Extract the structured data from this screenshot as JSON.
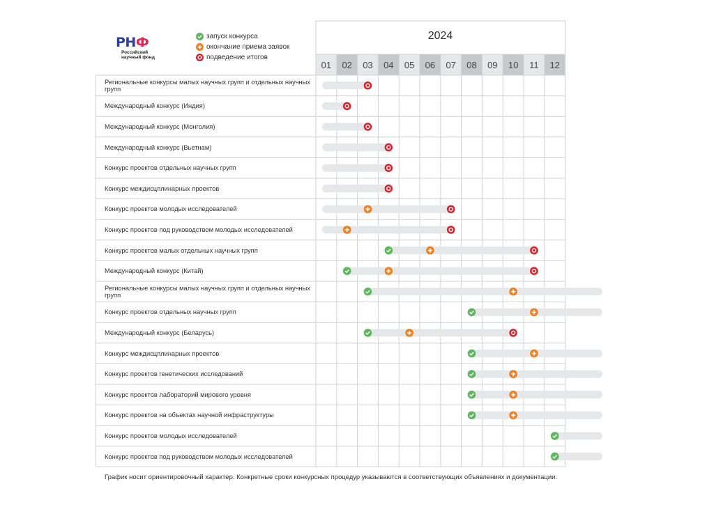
{
  "logo": {
    "mark_part1": "РН",
    "mark_part2": "Ф",
    "subtitle_line1": "Российский",
    "subtitle_line2": "научный фонд"
  },
  "legend": [
    {
      "icon": "check-circle-icon",
      "color": "#5cb85c",
      "label": "запуск конкурса"
    },
    {
      "icon": "plus-circle-icon",
      "color": "#f07f22",
      "label": "окончание приема заявок"
    },
    {
      "icon": "target-circle-icon",
      "color": "#d9232d",
      "label": "подведение итогов"
    }
  ],
  "colors": {
    "launch": "#5cb85c",
    "deadline": "#f07f22",
    "results": "#d9232d",
    "bar": "#e6e7e8",
    "grid": "#d0d2d5",
    "header_dark": "#c6c8ca",
    "header_light": "#e6e7e8"
  },
  "year": "2024",
  "months": [
    "01",
    "02",
    "03",
    "04",
    "05",
    "06",
    "07",
    "08",
    "09",
    "10",
    "11",
    "12"
  ],
  "rows": [
    {
      "label": "Региональные конкурсы малых научных групп и отдельных научных групп",
      "bar_start": 1.3,
      "bar_end": 3.5,
      "launch": null,
      "deadline": null,
      "results": 3.5
    },
    {
      "label": "Международный конкурс (Индия)",
      "bar_start": 1.3,
      "bar_end": 2.5,
      "launch": null,
      "deadline": null,
      "results": 2.5
    },
    {
      "label": "Международный конкурс (Монголия)",
      "bar_start": 1.3,
      "bar_end": 3.5,
      "launch": null,
      "deadline": null,
      "results": 3.5
    },
    {
      "label": "Международный конкурс (Вьетнам)",
      "bar_start": 1.3,
      "bar_end": 4.5,
      "launch": null,
      "deadline": null,
      "results": 4.5
    },
    {
      "label": "Конкурс проектов отдельных научных групп",
      "bar_start": 1.3,
      "bar_end": 4.5,
      "launch": null,
      "deadline": null,
      "results": 4.5
    },
    {
      "label": "Конкурс междисцплинарных проектов",
      "bar_start": 1.3,
      "bar_end": 4.5,
      "launch": null,
      "deadline": null,
      "results": 4.5
    },
    {
      "label": "Конкурс проектов молодых исследователей",
      "bar_start": 1.3,
      "bar_end": 7.5,
      "launch": null,
      "deadline": 3.5,
      "results": 7.5
    },
    {
      "label": "Конкурс проектов под руководством молодых исследователей",
      "bar_start": 1.3,
      "bar_end": 7.5,
      "launch": null,
      "deadline": 2.5,
      "results": 7.5
    },
    {
      "label": "Конкурс проектов малых отдельных научных групп",
      "bar_start": 4.5,
      "bar_end": 11.5,
      "launch": 4.5,
      "deadline": 6.5,
      "results": 11.5
    },
    {
      "label": "Международный конкурс (Китай)",
      "bar_start": 2.5,
      "bar_end": 11.5,
      "launch": 2.5,
      "deadline": 4.5,
      "results": 11.5
    },
    {
      "label": "Региональные конкурсы малых научных групп и отдельных научных групп",
      "bar_start": 3.5,
      "bar_end": 14.2,
      "launch": 3.5,
      "deadline": 10.5,
      "results": null
    },
    {
      "label": "Конкурс проектов отдельных научных групп",
      "bar_start": 8.5,
      "bar_end": 14.2,
      "launch": 8.5,
      "deadline": 11.5,
      "results": null
    },
    {
      "label": "Международный конкурс (Беларусь)",
      "bar_start": 3.5,
      "bar_end": 10.5,
      "launch": 3.5,
      "deadline": 5.5,
      "results": 10.5
    },
    {
      "label": "Конкурс междисцплинарных проектов",
      "bar_start": 8.5,
      "bar_end": 14.2,
      "launch": 8.5,
      "deadline": 11.5,
      "results": null
    },
    {
      "label": "Конкурс проектов генетических исследований",
      "bar_start": 8.5,
      "bar_end": 14.2,
      "launch": 8.5,
      "deadline": 10.5,
      "results": null
    },
    {
      "label": "Конкурс проектов лабораторий мирового уровня",
      "bar_start": 8.5,
      "bar_end": 14.2,
      "launch": 8.5,
      "deadline": 10.5,
      "results": null
    },
    {
      "label": "Конкурс проектов на объектах научной инфраструктуры",
      "bar_start": 8.5,
      "bar_end": 14.2,
      "launch": 8.5,
      "deadline": 10.5,
      "results": null
    },
    {
      "label": "Конкурс проектов молодых исследователей",
      "bar_start": 12.5,
      "bar_end": 14.2,
      "launch": 12.5,
      "deadline": null,
      "results": null
    },
    {
      "label": "Конкурс проектов под руководством молодых исследователей",
      "bar_start": 12.5,
      "bar_end": 14.2,
      "launch": 12.5,
      "deadline": null,
      "results": null
    }
  ],
  "footnote": "График носит ориентировочный характер. Конкретные сроки конкурсных процедур указываются в соответствующих объявлениях и документации."
}
